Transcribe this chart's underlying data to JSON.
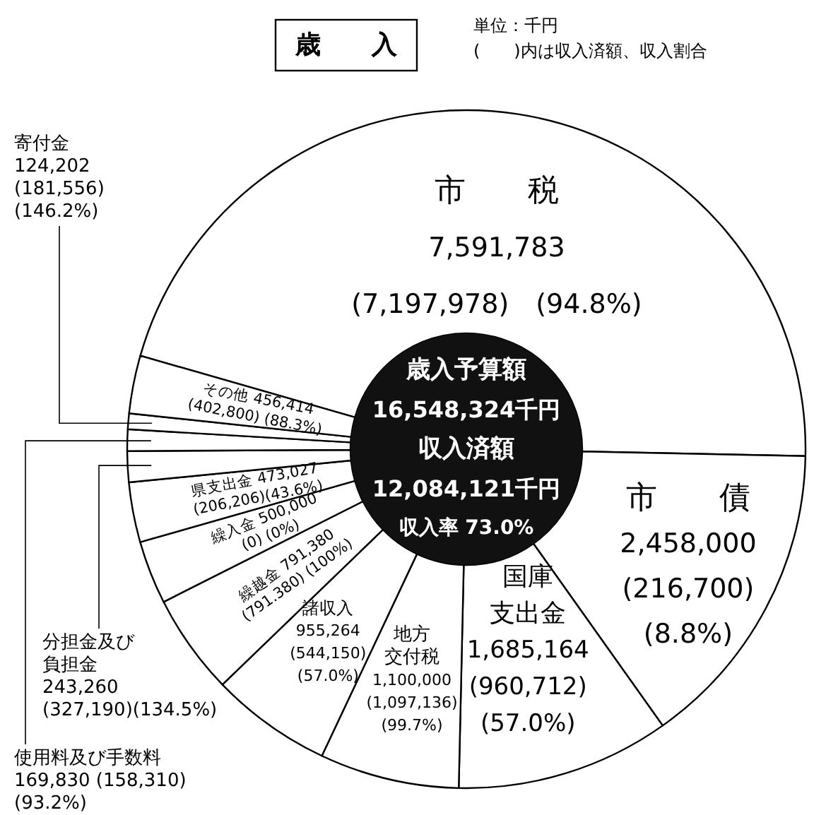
{
  "chart_data": {
    "type": "donut",
    "title": "歳　　入",
    "categories": [
      "市　　税",
      "市　　債",
      "国庫支出金",
      "地方交付税",
      "諸収入",
      "繰越金",
      "繰入金",
      "県支出金",
      "分担金及び負担金",
      "使用料及び手数料",
      "寄付金",
      "その他"
    ],
    "values": [
      7591783,
      2458000,
      1685164,
      1100000,
      955264,
      791380,
      500000,
      473027,
      243260,
      169830,
      124202,
      456414
    ],
    "colors": [
      "#ffffff",
      "#ffffff",
      "#ffffff",
      "#ffffff",
      "#ffffff",
      "#ffffff",
      "#ffffff",
      "#ffffff",
      "#ffffff",
      "#ffffff",
      "#ffffff",
      "#ffffff"
    ],
    "value_labels": [
      "7,591,783\n(7,197,978)　(94.8%)",
      "2,458,000\n(216,700)\n(8.8%)",
      "1,685,164\n(960,712)\n(57.0%)",
      "1,100,000\n(1,097,136)\n(99.7%)",
      "955,264\n(544,150)\n(57.0%)",
      "791,380\n(791.380)\n(100%)",
      "500,000\n(0)\n(0%)",
      "473,027\n(206,206)(43.6%)",
      "243,260\n(327,190)(134.5%)",
      "169,830 (158,310)\n(93.2%)",
      "124,202\n(181,556)\n(146.2%)",
      "456,414\n(402,800)\n(88.3%)"
    ],
    "annotations": [
      "単位：千円",
      "(　　)内は収入済額、収入割合",
      "歳入予算額",
      "16,548,324千円",
      "収入済額",
      "12,084,121千円",
      "収入率 73.0%"
    ]
  }
}
